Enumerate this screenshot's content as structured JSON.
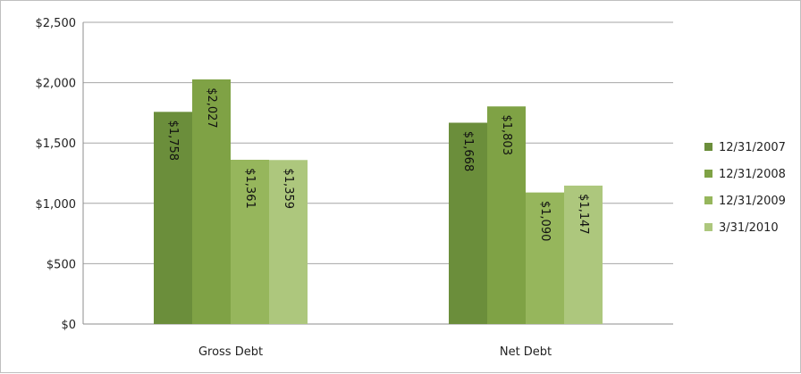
{
  "chart_data": {
    "type": "bar",
    "categories": [
      "Gross Debt",
      "Net Debt"
    ],
    "series": [
      {
        "name": "12/31/2007",
        "values": [
          1758,
          1668
        ],
        "labels": [
          "$1,758",
          "$1,668"
        ],
        "color": "#6b8e3b"
      },
      {
        "name": "12/31/2008",
        "values": [
          2027,
          1803
        ],
        "labels": [
          "$2,027",
          "$1,803"
        ],
        "color": "#7fa245"
      },
      {
        "name": "12/31/2009",
        "values": [
          1361,
          1090
        ],
        "labels": [
          "$1,361",
          "$1,090"
        ],
        "color": "#96b65c"
      },
      {
        "name": "3/31/2010",
        "values": [
          1359,
          1147
        ],
        "labels": [
          "$1,359",
          "$1,147"
        ],
        "color": "#adc77d"
      }
    ],
    "ylim": [
      0,
      2500
    ],
    "yticks": [
      0,
      500,
      1000,
      1500,
      2000,
      2500
    ],
    "ytick_labels": [
      "$0",
      "$500",
      "$1,000",
      "$1,500",
      "$2,000",
      "$2,500"
    ],
    "grid": true,
    "legend_position": "right",
    "title": "",
    "xlabel": "",
    "ylabel": ""
  }
}
